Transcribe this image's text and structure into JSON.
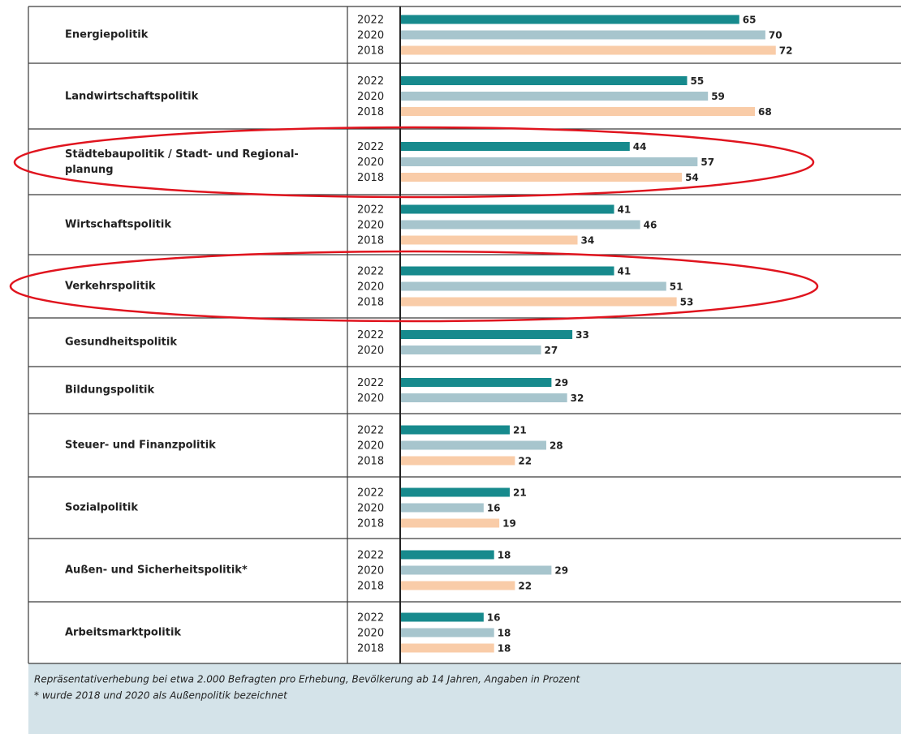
{
  "chart_data": {
    "type": "bar",
    "orientation": "horizontal",
    "categories": [
      "Energiepolitik",
      "Landwirtschaftspolitik",
      "Städtebaupolitik / Stadt- und Regional-planung",
      "Wirtschaftspolitik",
      "Verkehrspolitik",
      "Gesundheitspolitik",
      "Bildungspolitik",
      "Steuer- und Finanzpolitik",
      "Sozialpolitik",
      "Außen- und Sicherheitspolitik*",
      "Arbeitsmarktpolitik"
    ],
    "series": [
      {
        "name": "2022",
        "color": "#178a8d",
        "values": [
          65,
          55,
          44,
          41,
          41,
          33,
          29,
          21,
          21,
          18,
          16
        ]
      },
      {
        "name": "2020",
        "color": "#a7c5cd",
        "values": [
          70,
          59,
          57,
          46,
          51,
          27,
          32,
          28,
          16,
          29,
          18
        ]
      },
      {
        "name": "2018",
        "color": "#f9cca8",
        "values": [
          72,
          68,
          54,
          34,
          53,
          null,
          null,
          22,
          19,
          22,
          18
        ]
      }
    ],
    "xlim": [
      0,
      96
    ],
    "notes": [
      "Repräsentativerhebung bei etwa 2.000 Befragten pro Erhebung, Bevölkerung ab 14 Jahren, Angaben in Prozent",
      "* wurde 2018 und 2020 als Außenpolitik bezeichnet"
    ]
  }
}
